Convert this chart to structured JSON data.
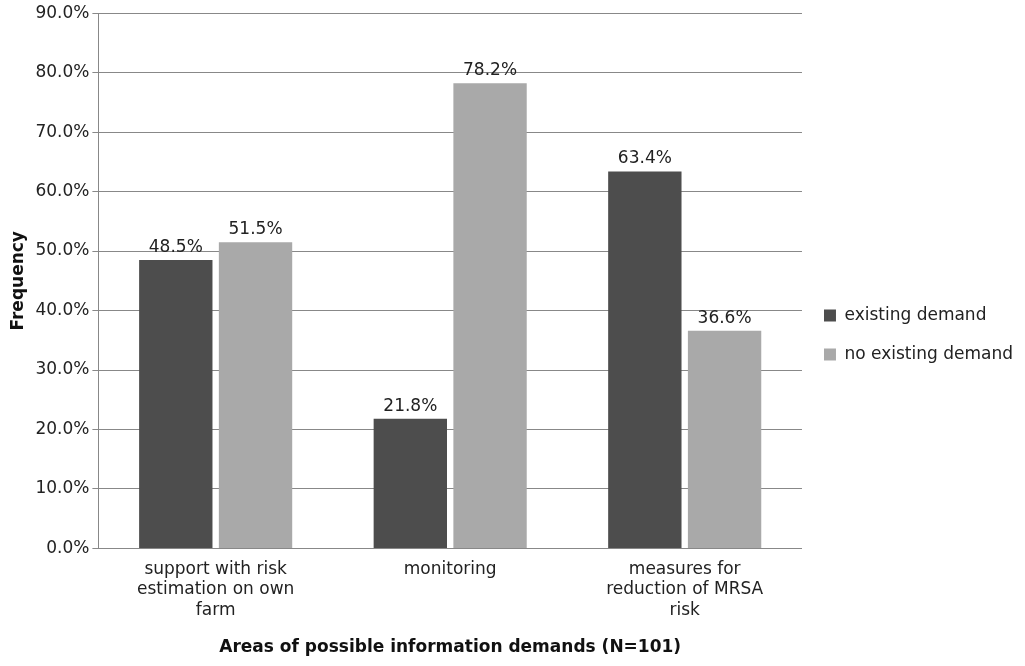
{
  "chart_data": {
    "type": "bar",
    "xlabel": "Areas of possible information demands (N=101)",
    "ylabel": "Frequency",
    "categories": [
      "support with risk estimation on own farm",
      "monitoring",
      "measures for reduction of MRSA risk"
    ],
    "series": [
      {
        "name": "existing demand",
        "color": "#4d4d4d",
        "values": [
          48.5,
          21.8,
          63.4
        ],
        "value_labels": [
          "48.5%",
          "21.8%",
          "63.4%"
        ]
      },
      {
        "name": "no existing demand",
        "color": "#a9a9a9",
        "values": [
          51.5,
          78.2,
          36.6
        ],
        "value_labels": [
          "51.5%",
          "78.2%",
          "36.6%"
        ]
      }
    ],
    "ylim": [
      0,
      90
    ],
    "yticks": [
      {
        "value": 0,
        "label": "0.0%"
      },
      {
        "value": 10,
        "label": "10.0%"
      },
      {
        "value": 20,
        "label": "20.0%"
      },
      {
        "value": 30,
        "label": "30.0%"
      },
      {
        "value": 40,
        "label": "40.0%"
      },
      {
        "value": 50,
        "label": "50.0%"
      },
      {
        "value": 60,
        "label": "60.0%"
      },
      {
        "value": 70,
        "label": "70.0%"
      },
      {
        "value": 80,
        "label": "80.0%"
      },
      {
        "value": 90,
        "label": "90.0%"
      }
    ],
    "grid": "y",
    "legend": "right"
  }
}
